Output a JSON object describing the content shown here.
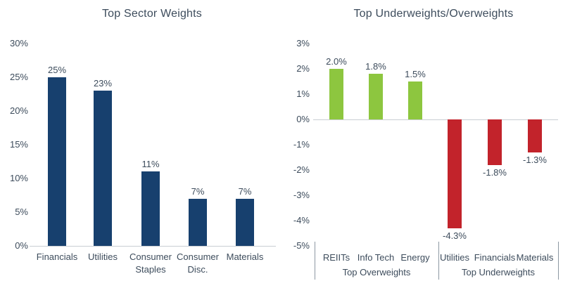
{
  "theme": {
    "background": "#ffffff",
    "text_color": "#3d4c5c",
    "axis_line_color": "#c9ced3",
    "divider_color": "#8d98a2"
  },
  "chart_data": [
    {
      "type": "bar",
      "title": "Top Sector Weights",
      "categories": [
        "Financials",
        "Utilities",
        "Consumer Staples",
        "Consumer Disc.",
        "Materials"
      ],
      "values": [
        25,
        23,
        11,
        7,
        7
      ],
      "value_labels": [
        "25%",
        "23%",
        "11%",
        "7%",
        "7%"
      ],
      "y_ticks": [
        "30%",
        "25%",
        "20%",
        "15%",
        "10%",
        "5%",
        "0%"
      ],
      "ylim": [
        0,
        30
      ],
      "grid": false,
      "legend": false,
      "colors": {
        "bar": "#17406e"
      }
    },
    {
      "type": "bar",
      "title": "Top Underweights/Overweights",
      "categories": [
        "REIITs",
        "Info Tech",
        "Energy",
        "Utilities",
        "Financials",
        "Materials"
      ],
      "values": [
        2.0,
        1.8,
        1.5,
        -4.3,
        -1.8,
        -1.3
      ],
      "value_labels": [
        "2.0%",
        "1.8%",
        "1.5%",
        "-4.3%",
        "-1.8%",
        "-1.3%"
      ],
      "y_ticks": [
        "3%",
        "2%",
        "1%",
        "0%",
        "-1%",
        "-2%",
        "-3%",
        "-4%",
        "-5%"
      ],
      "ylim": [
        -5,
        3
      ],
      "grid": false,
      "legend": false,
      "groups": [
        "Top Overweights",
        "Top Underweights"
      ],
      "colors": {
        "positive": "#8dc63f",
        "negative": "#c2232b"
      }
    }
  ]
}
